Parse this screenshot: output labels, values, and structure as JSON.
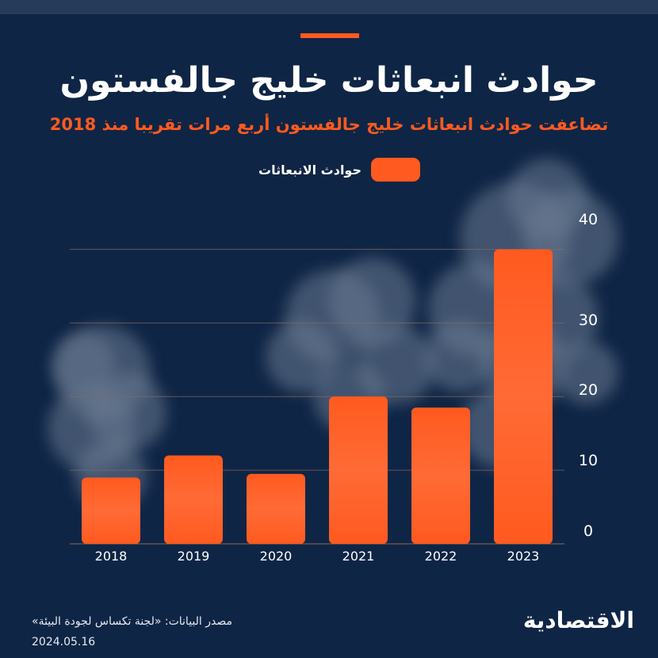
{
  "title": "حوادث انبعاثات خليج جالفستون",
  "subtitle": "تضاعفت حوادث انبعاثات خليج جالفستون أربع مرات تقريبا منذ 2018",
  "legend_label": "حوادث الانبعاثات",
  "source": "مصدر البيانات: «لجنة تكساس لجودة البيئة»",
  "date": "2024.05.16",
  "logo": "الاقتصادية",
  "colors": {
    "accent": "#ff5a1f",
    "background": "#0f2545",
    "smoke": "#6b7a92"
  },
  "chart_data": {
    "type": "bar",
    "categories": [
      "2018",
      "2019",
      "2020",
      "2021",
      "2022",
      "2023"
    ],
    "series": [
      {
        "name": "حوادث الانبعاثات",
        "values": [
          9,
          12,
          9.5,
          20,
          18.5,
          40
        ]
      }
    ],
    "y_ticks": [
      "0",
      "10",
      "20",
      "30",
      "40"
    ],
    "ylim": [
      0,
      45
    ],
    "grid": true,
    "legend_position": "top-center"
  }
}
